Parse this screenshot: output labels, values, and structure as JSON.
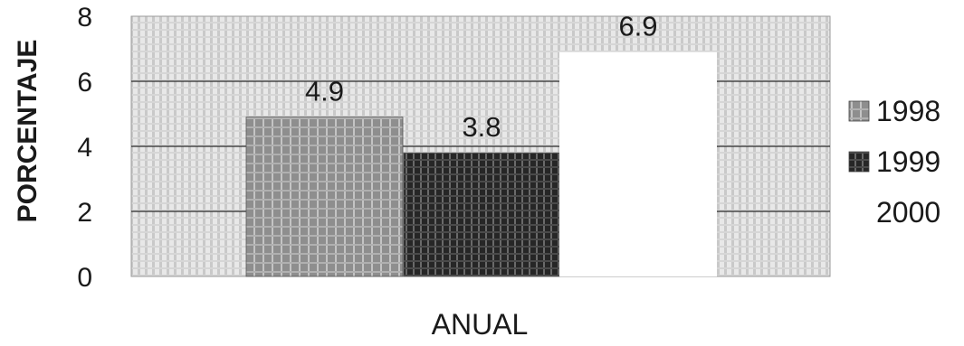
{
  "chart_data": {
    "type": "bar",
    "title": "",
    "xlabel": "ANUAL",
    "ylabel": "PORCENTAJE",
    "ylim": [
      0,
      8
    ],
    "yticks": [
      "0",
      "2",
      "4",
      "6",
      "8"
    ],
    "grid": true,
    "legend_position": "right",
    "series": [
      {
        "name": "1998",
        "values": [
          4.9
        ],
        "label": "4.9",
        "color": "#8a8a8a"
      },
      {
        "name": "1999",
        "values": [
          3.8
        ],
        "label": "3.8",
        "color": "#2a2a2a"
      },
      {
        "name": "2000",
        "values": [
          6.9
        ],
        "label": "6.9",
        "color": "#ffffff"
      }
    ]
  }
}
